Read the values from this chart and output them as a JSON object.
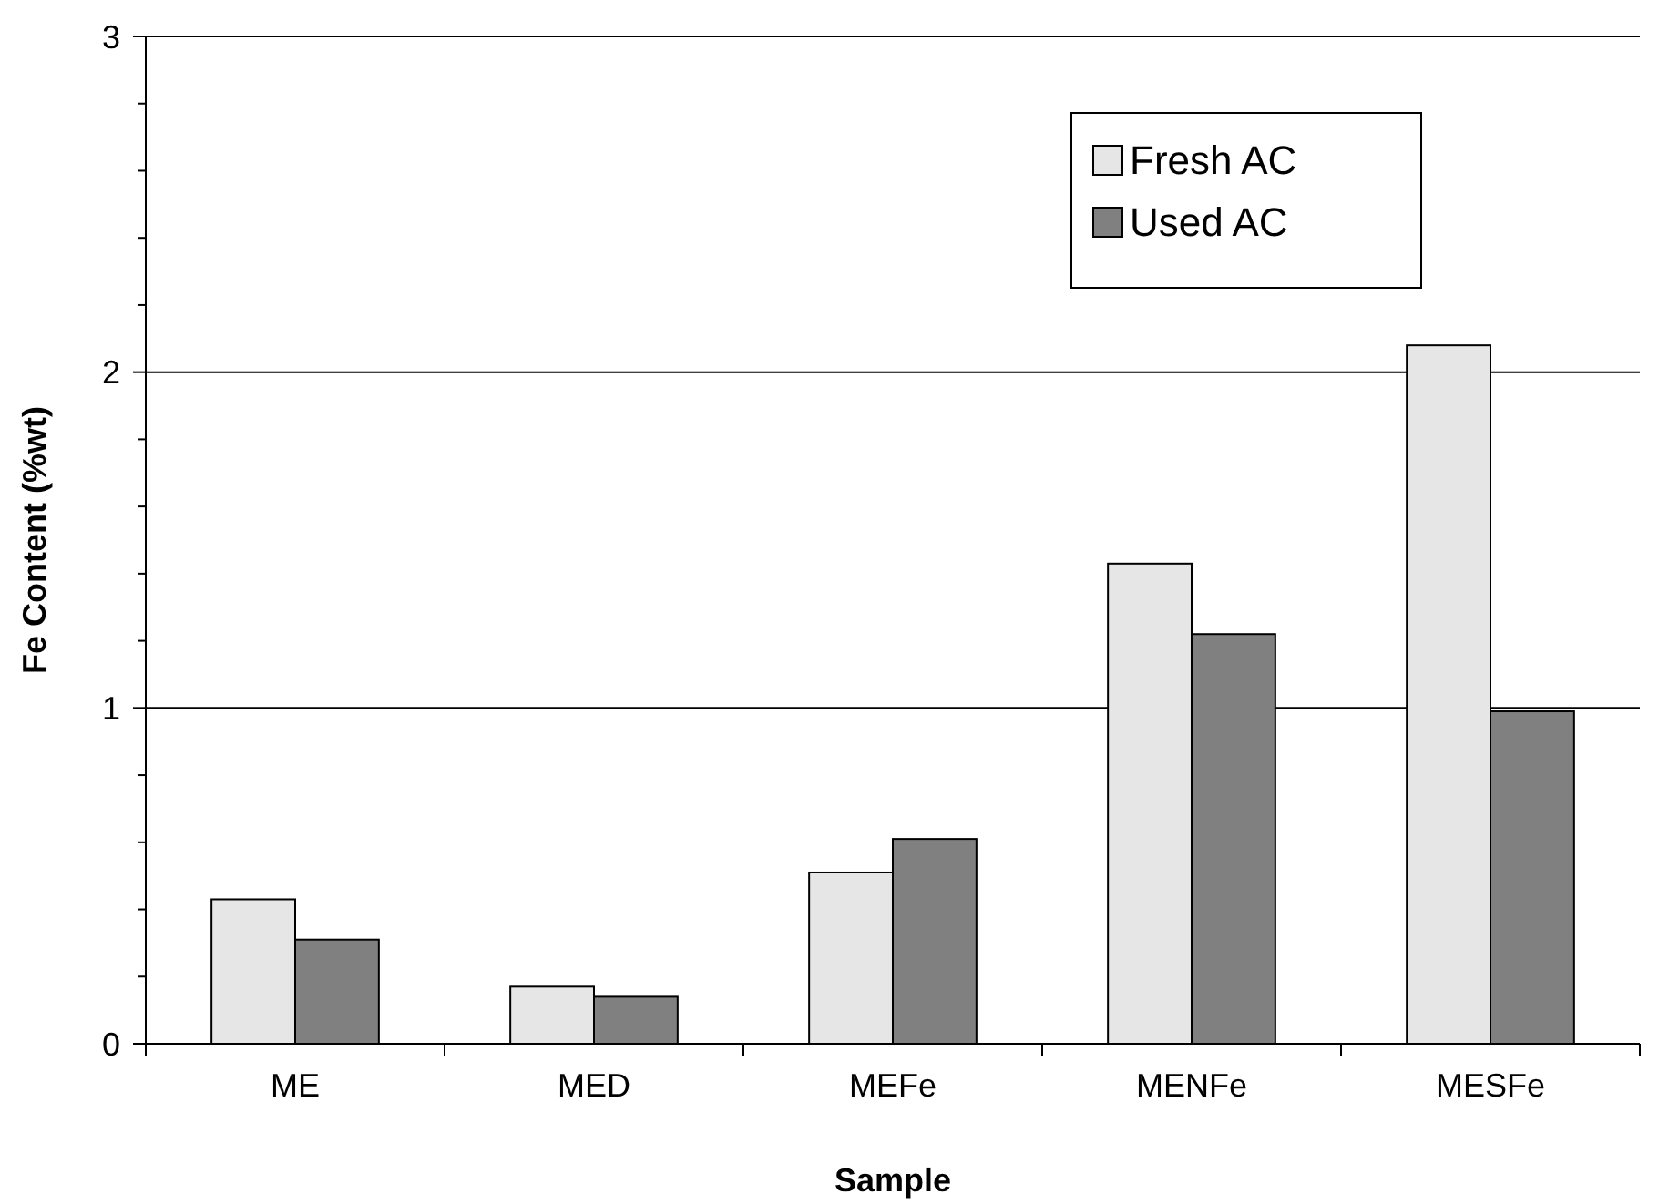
{
  "chart_data": {
    "type": "bar",
    "xlabel": "Sample",
    "ylabel": "Fe Content (%wt)",
    "categories": [
      "ME",
      "MED",
      "MEFe",
      "MENFe",
      "MESFe"
    ],
    "series": [
      {
        "name": "Fresh AC",
        "color": "#e6e6e6",
        "values": [
          0.43,
          0.17,
          0.51,
          1.43,
          2.08
        ]
      },
      {
        "name": "Used AC",
        "color": "#808080",
        "values": [
          0.31,
          0.14,
          0.61,
          1.22,
          0.99
        ]
      }
    ],
    "ylim": [
      0,
      3
    ],
    "yticks": [
      0,
      {
        "value": 0.2,
        "label": null
      },
      {
        "value": 0.4,
        "label": null
      },
      {
        "value": 0.6,
        "label": null
      },
      {
        "value": 0.8,
        "label": null
      },
      1,
      {
        "value": 1.2,
        "label": null
      },
      {
        "value": 1.4,
        "label": null
      },
      {
        "value": 1.6,
        "label": null
      },
      {
        "value": 1.8,
        "label": null
      },
      2,
      {
        "value": 2.2,
        "label": null
      },
      {
        "value": 2.4,
        "label": null
      },
      {
        "value": 2.6,
        "label": null
      },
      {
        "value": 2.8,
        "label": null
      },
      3
    ],
    "grid": "y",
    "legend": "top right"
  }
}
